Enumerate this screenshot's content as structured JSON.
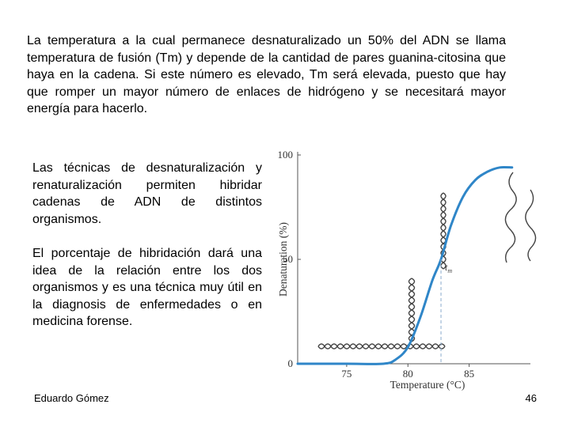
{
  "slide": {
    "intro": "La temperatura a la cual permanece desnaturalizado un 50% del ADN se llama temperatura de fusión (Tm) y depende de la cantidad de pares guanina-citosina que haya en la cadena. Si este número es elevado, Tm será elevada, puesto que hay que romper un mayor número de enlaces de hidrógeno y se necesitará mayor energía para hacerlo.",
    "paragraph_1": "Las técnicas de desnaturalización y renaturalización permiten hibridar cadenas de ADN de distintos organismos.",
    "paragraph_2": "El porcentaje de hibridación dará una idea de la relación entre los dos organismos y  es una técnica muy útil en la diagnosis de enfermedades o en medicina forense.",
    "author": "Eduardo Gómez",
    "page_number": "46"
  },
  "chart_data": {
    "type": "line",
    "xlabel": "Temperature (°C)",
    "ylabel": "Denaturation (%)",
    "x_ticks": [
      "75",
      "80",
      "85"
    ],
    "y_ticks": [
      "0",
      "50",
      "100"
    ],
    "xlim": [
      71,
      90
    ],
    "ylim": [
      0,
      100
    ],
    "tm_label": "t",
    "tm_subscript": "m",
    "tm_value": 82.7,
    "series": [
      {
        "color": "#2f86c8",
        "x": [
          71,
          75,
          78,
          79,
          80,
          81,
          82,
          82.7,
          83.5,
          84.5,
          85.5,
          86.5,
          87.5,
          88.5
        ],
        "y": [
          0,
          0,
          0,
          2,
          8,
          22,
          40,
          50,
          66,
          80,
          88,
          92,
          94,
          94
        ]
      }
    ],
    "grid": false
  },
  "colors": {
    "curve": "#2f86c8",
    "axis": "#555555",
    "helix": "#444444"
  }
}
